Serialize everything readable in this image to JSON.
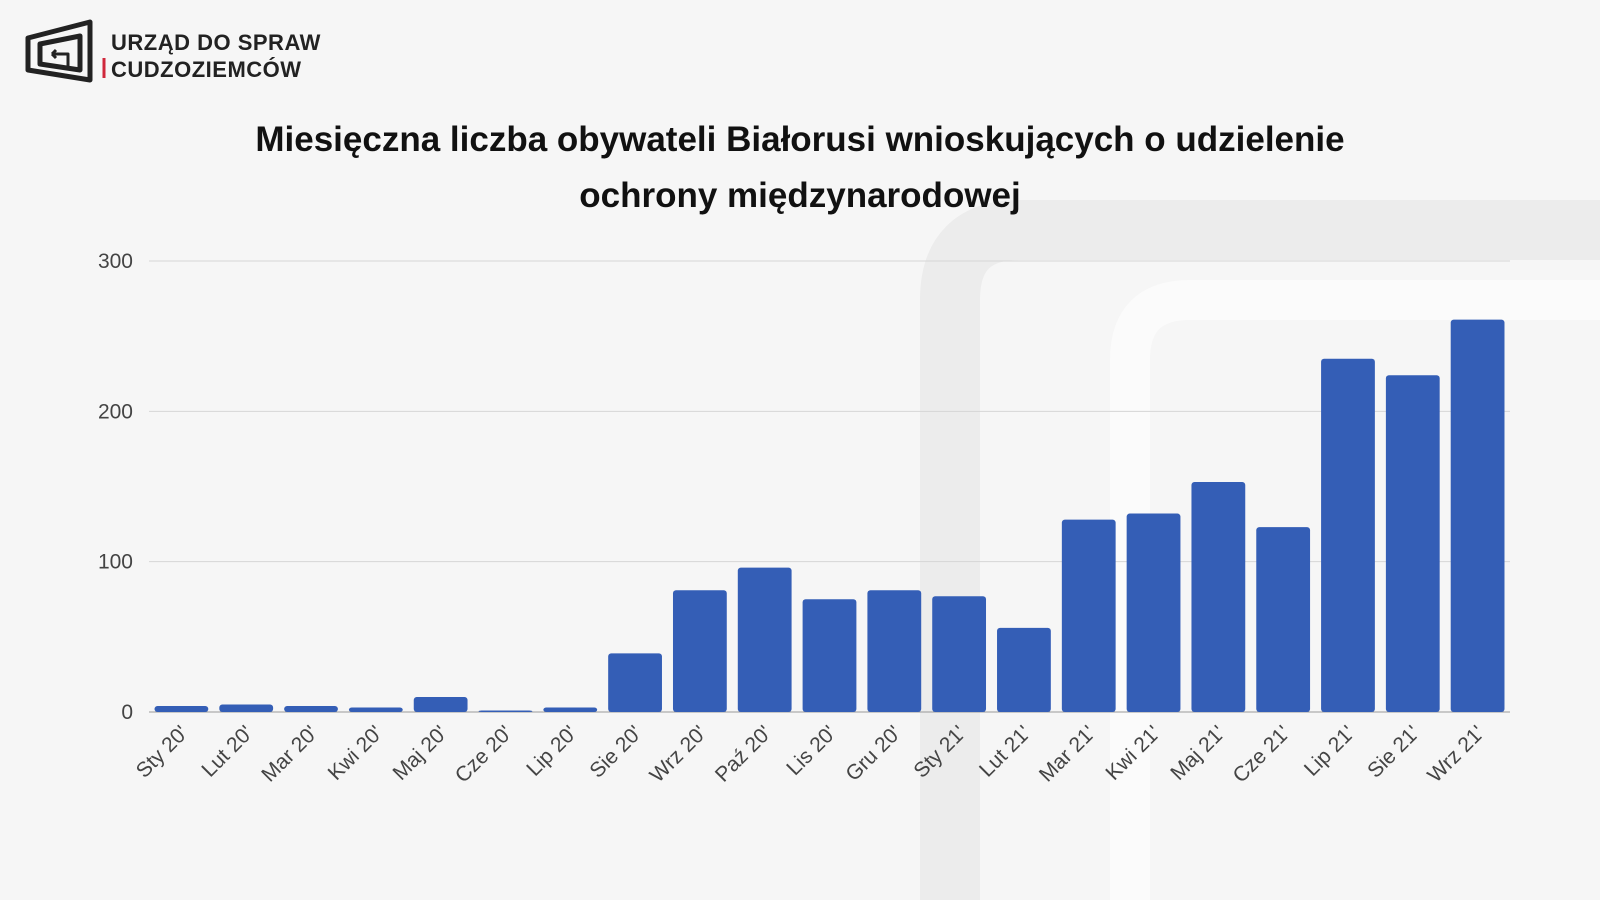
{
  "header": {
    "org_line1": "URZĄD DO SPRAW",
    "org_line2": "CUDZOZIEMCÓW"
  },
  "chart_data": {
    "type": "bar",
    "title": "Miesięczna liczba obywateli Białorusi wnioskujących o udzielenie ochrony międzynarodowej",
    "categories": [
      "Sty 20'",
      "Lut 20'",
      "Mar 20'",
      "Kwi 20'",
      "Maj 20'",
      "Cze 20'",
      "Lip 20'",
      "Sie 20'",
      "Wrz 20'",
      "Paź 20'",
      "Lis 20'",
      "Gru 20'",
      "Sty 21'",
      "Lut 21'",
      "Mar 21'",
      "Kwi 21'",
      "Maj 21'",
      "Cze 21'",
      "Lip 21'",
      "Sie 21'",
      "Wrz 21'"
    ],
    "values": [
      4,
      5,
      4,
      3,
      10,
      1,
      3,
      39,
      81,
      96,
      75,
      81,
      77,
      56,
      128,
      132,
      153,
      123,
      235,
      224,
      261
    ],
    "color": "#345eb6",
    "ylim": [
      0,
      300
    ],
    "yticks": [
      0,
      100,
      200,
      300
    ],
    "grid": true
  }
}
